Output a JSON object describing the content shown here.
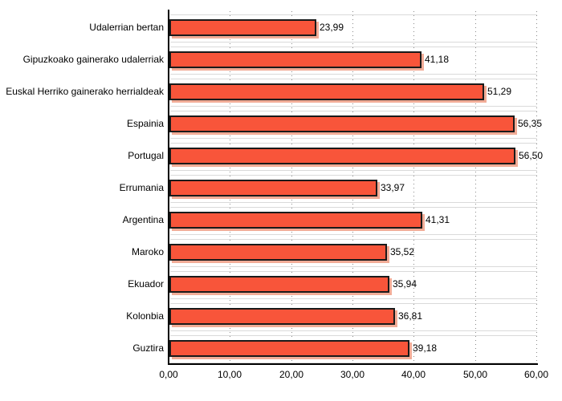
{
  "chart_data": {
    "type": "bar",
    "orientation": "horizontal",
    "title": "",
    "xlabel": "",
    "ylabel": "",
    "categories": [
      "Udalerrian bertan",
      "Gipuzkoako gainerako udalerriak",
      "Euskal Herriko gainerako herrialdeak",
      "Espainia",
      "Portugal",
      "Errumania",
      "Argentina",
      "Maroko",
      "Ekuador",
      "Kolonbia",
      "Guztira"
    ],
    "values": [
      23.99,
      41.18,
      51.29,
      56.35,
      56.5,
      33.97,
      41.31,
      35.52,
      35.94,
      36.81,
      39.18
    ],
    "value_labels": [
      "23,99",
      "41,18",
      "51,29",
      "56,35",
      "56,50",
      "33,97",
      "41,31",
      "35,52",
      "35,94",
      "36,81",
      "39,18"
    ],
    "xlim": [
      0,
      60
    ],
    "x_ticks": [
      0,
      10,
      20,
      30,
      40,
      50,
      60
    ],
    "x_tick_labels": [
      "0,00",
      "10,00",
      "20,00",
      "30,00",
      "40,00",
      "50,00",
      "60,00"
    ],
    "grid": "vertical-dotted",
    "legend": "none",
    "colors": {
      "bar_fill": "#F8553A",
      "bar_border": "#1a1a1a",
      "bar_shadow": "#F1AC97",
      "axis": "#000000",
      "v_gridline": "#8a8a8a",
      "row_gridline": "#dadada",
      "background": "#ffffff",
      "text": "#000000"
    }
  }
}
